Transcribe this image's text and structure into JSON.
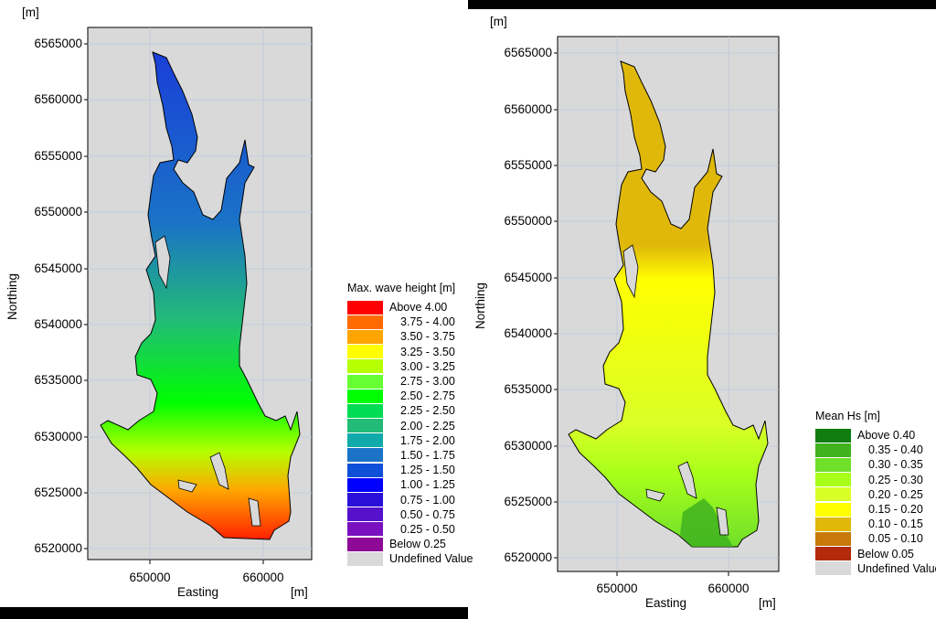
{
  "panels": [
    {
      "unit_label": "[m]",
      "x_title": "Easting",
      "x_unit": "[m]",
      "y_title": "Northing",
      "y_ticks": [
        "6565000",
        "6560000",
        "6555000",
        "6550000",
        "6545000",
        "6540000",
        "6535000",
        "6530000",
        "6525000",
        "6520000"
      ],
      "x_ticks": [
        "650000",
        "660000"
      ],
      "legend": {
        "title": "Max. wave height [m]",
        "items": [
          {
            "label": "Above 4.00",
            "color": "#ff0000"
          },
          {
            "label": "3.75 - 4.00",
            "color": "#ff6a00"
          },
          {
            "label": "3.50 - 3.75",
            "color": "#ffa500"
          },
          {
            "label": "3.25 - 3.50",
            "color": "#ffff00"
          },
          {
            "label": "3.00 - 3.25",
            "color": "#b5ff00"
          },
          {
            "label": "2.75 - 3.00",
            "color": "#66ff33"
          },
          {
            "label": "2.50 - 2.75",
            "color": "#00ff00"
          },
          {
            "label": "2.25 - 2.50",
            "color": "#00dd55"
          },
          {
            "label": "2.00 - 2.25",
            "color": "#22bb77"
          },
          {
            "label": "1.75 - 2.00",
            "color": "#11aaaa"
          },
          {
            "label": "1.50 - 1.75",
            "color": "#1a73c7"
          },
          {
            "label": "1.25 - 1.50",
            "color": "#1050d8"
          },
          {
            "label": "1.00 - 1.25",
            "color": "#0000ff"
          },
          {
            "label": "0.75 - 1.00",
            "color": "#2a10d8"
          },
          {
            "label": "0.50 - 0.75",
            "color": "#5511cc"
          },
          {
            "label": "0.25 - 0.50",
            "color": "#7a10c0"
          },
          {
            "label": "Below 0.25",
            "color": "#8e0a96"
          },
          {
            "label": "Undefined Value",
            "color": "#d9d9d9"
          }
        ]
      }
    },
    {
      "unit_label": "[m]",
      "x_title": "Easting",
      "x_unit": "[m]",
      "y_title": "Northing",
      "y_ticks": [
        "6565000",
        "6560000",
        "6555000",
        "6550000",
        "6545000",
        "6540000",
        "6535000",
        "6530000",
        "6525000",
        "6520000"
      ],
      "x_ticks": [
        "650000",
        "660000"
      ],
      "legend": {
        "title": "Mean Hs [m]",
        "items": [
          {
            "label": "Above 0.40",
            "color": "#0f7d10"
          },
          {
            "label": "0.35 - 0.40",
            "color": "#3fb21e"
          },
          {
            "label": "0.30 - 0.35",
            "color": "#6fdf2a"
          },
          {
            "label": "0.25 - 0.30",
            "color": "#a8ff1a"
          },
          {
            "label": "0.20 - 0.25",
            "color": "#d9ff26"
          },
          {
            "label": "0.15 - 0.20",
            "color": "#ffff00"
          },
          {
            "label": "0.10 - 0.15",
            "color": "#e0b80a"
          },
          {
            "label": "0.05 - 0.10",
            "color": "#c77a0a"
          },
          {
            "label": "Below 0.05",
            "color": "#b22a0a"
          },
          {
            "label": "Undefined Value",
            "color": "#d9d9d9"
          }
        ]
      }
    }
  ]
}
